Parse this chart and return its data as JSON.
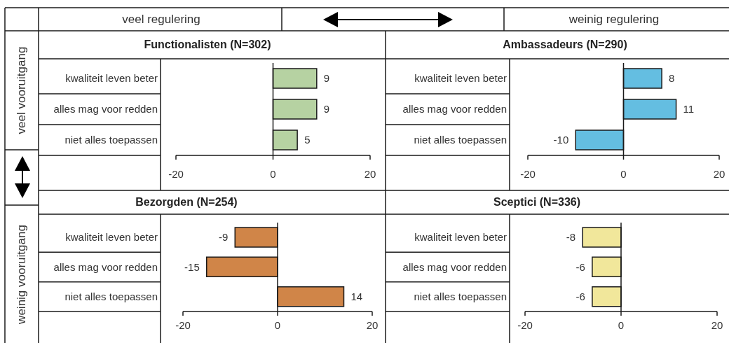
{
  "chart_data": [
    {
      "type": "other",
      "annotations": [
        "veel regulering",
        "weinig regulering",
        "veel vooruitgang",
        "weinig vooruitgang"
      ]
    },
    {
      "type": "bar",
      "orientation": "horizontal",
      "title": "Functionalisten (N=302)",
      "categories": [
        "kwaliteit leven beter",
        "alles mag voor redden",
        "niet alles toepassen"
      ],
      "values": [
        9,
        9,
        5
      ],
      "color": "#b6d2a2",
      "xlim": [
        -20,
        20
      ],
      "xticks": [
        -20,
        0,
        20
      ],
      "data_labels": true,
      "ref_lines": [
        {
          "axis": "x",
          "value": 0
        }
      ]
    },
    {
      "type": "bar",
      "orientation": "horizontal",
      "title": "Ambassadeurs (N=290)",
      "categories": [
        "kwaliteit leven beter",
        "alles mag voor redden",
        "niet alles toepassen"
      ],
      "values": [
        8,
        11,
        -10
      ],
      "color": "#64bee1",
      "xlim": [
        -20,
        20
      ],
      "xticks": [
        -20,
        0,
        20
      ],
      "data_labels": true,
      "ref_lines": [
        {
          "axis": "x",
          "value": 0
        }
      ]
    },
    {
      "type": "bar",
      "orientation": "horizontal",
      "title": "Bezorgden (N=254)",
      "categories": [
        "kwaliteit leven beter",
        "alles mag voor redden",
        "niet alles toepassen"
      ],
      "values": [
        -9,
        -15,
        14
      ],
      "color": "#d08548",
      "xlim": [
        -20,
        20
      ],
      "xticks": [
        -20,
        0,
        20
      ],
      "data_labels": true,
      "ref_lines": [
        {
          "axis": "x",
          "value": 0
        }
      ]
    },
    {
      "type": "bar",
      "orientation": "horizontal",
      "title": "Sceptici (N=336)",
      "categories": [
        "kwaliteit leven beter",
        "alles mag voor redden",
        "niet alles toepassen"
      ],
      "values": [
        -8,
        -6,
        -6
      ],
      "color": "#f1e79b",
      "xlim": [
        -20,
        20
      ],
      "xticks": [
        -20,
        0,
        20
      ],
      "data_labels": true,
      "ref_lines": [
        {
          "axis": "x",
          "value": 0
        }
      ]
    }
  ]
}
